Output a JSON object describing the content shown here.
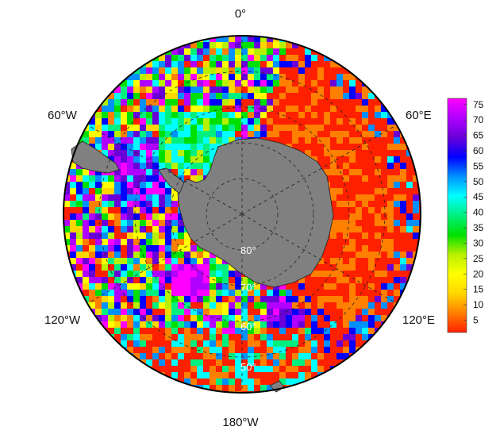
{
  "map": {
    "projection": "south-polar-stereographic",
    "longitude_labels": [
      {
        "text": "0°",
        "lon": 0
      },
      {
        "text": "60°E",
        "lon": 60
      },
      {
        "text": "120°E",
        "lon": 120
      },
      {
        "text": "180°W",
        "lon": 180
      },
      {
        "text": "120°W",
        "lon": -120
      },
      {
        "text": "60°W",
        "lon": -60
      }
    ],
    "latitude_labels": [
      {
        "text": "80°",
        "lat": -80
      },
      {
        "text": "70°",
        "lat": -70
      },
      {
        "text": "60°",
        "lat": -60
      },
      {
        "text": "50°",
        "lat": -50
      }
    ],
    "graticule": {
      "style": "dashed",
      "latitudes": [
        -80,
        -70,
        -60,
        -50
      ],
      "meridian_step_deg": 60
    },
    "land_color": "#808080",
    "outer_latitude": -40
  },
  "colorbar": {
    "ticks": [
      "75",
      "70",
      "65",
      "60",
      "55",
      "50",
      "45",
      "40",
      "35",
      "30",
      "25",
      "20",
      "15",
      "10",
      "5"
    ],
    "min": 1,
    "max": 77,
    "colors": [
      "#ff2000",
      "#ff7f00",
      "#ffd700",
      "#ffff00",
      "#b7f000",
      "#00e000",
      "#00f080",
      "#00ffff",
      "#0090ff",
      "#0000ff",
      "#6a00d8",
      "#b000ff",
      "#ff00ff"
    ]
  }
}
